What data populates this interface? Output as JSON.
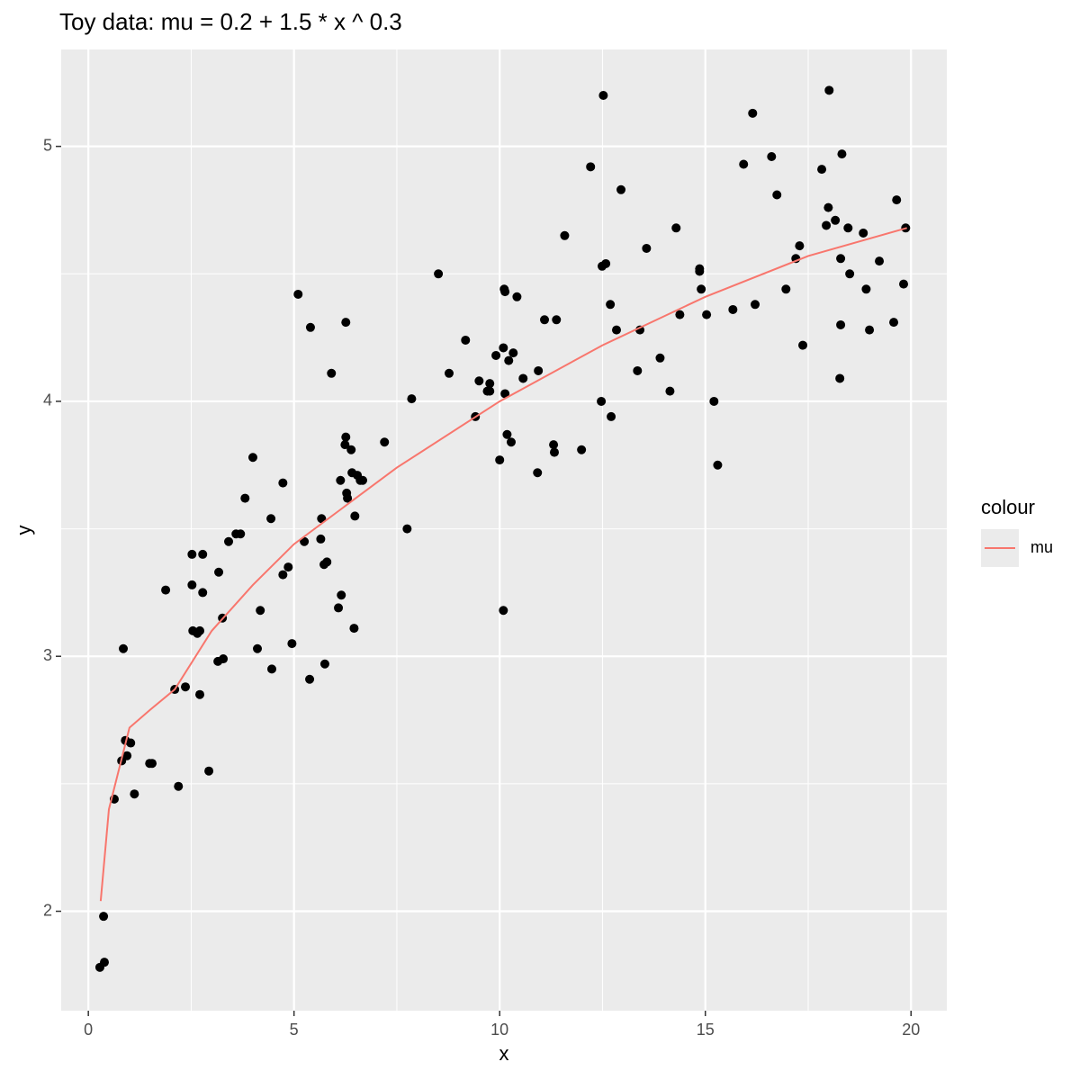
{
  "chart_data": {
    "type": "scatter",
    "title": "Toy data: mu = 0.2 + 1.5 * x ^ 0.3",
    "x_label": "x",
    "y_label": "y",
    "xlim": [
      -0.66,
      20.87
    ],
    "ylim": [
      1.61,
      5.38
    ],
    "xticks": [
      0,
      5,
      10,
      15,
      20
    ],
    "yticks": [
      2,
      3,
      4,
      5
    ],
    "grid": true,
    "legend_position": "right",
    "legend_title": "colour",
    "points": {
      "color": "#000000",
      "x": [
        0.28,
        0.39,
        0.37,
        0.85,
        0.63,
        0.81,
        0.9,
        0.94,
        1.03,
        1.12,
        1.49,
        1.55,
        1.88,
        2.1,
        2.19,
        2.36,
        2.52,
        2.52,
        2.54,
        2.65,
        2.71,
        2.78,
        2.78,
        2.71,
        2.93,
        3.15,
        3.17,
        3.26,
        3.28,
        3.41,
        3.59,
        3.7,
        3.81,
        4.0,
        4.11,
        4.18,
        4.44,
        4.46,
        4.73,
        4.73,
        4.86,
        4.95,
        5.1,
        5.25,
        5.4,
        5.38,
        5.65,
        5.67,
        5.73,
        5.8,
        5.75,
        5.91,
        6.08,
        6.13,
        6.15,
        6.24,
        6.26,
        6.26,
        6.28,
        6.3,
        6.39,
        6.41,
        6.46,
        6.48,
        6.54,
        6.61,
        6.67,
        7.2,
        7.75,
        7.86,
        8.51,
        8.77,
        9.17,
        9.41,
        9.5,
        9.7,
        9.76,
        9.76,
        9.91,
        10.0,
        10.09,
        10.11,
        10.13,
        10.13,
        10.18,
        10.22,
        10.28,
        10.33,
        10.09,
        10.42,
        10.57,
        10.92,
        10.94,
        11.09,
        11.31,
        11.33,
        11.38,
        11.58,
        11.99,
        12.21,
        12.47,
        12.49,
        12.52,
        12.58,
        12.69,
        12.71,
        12.84,
        12.95,
        13.35,
        13.41,
        13.57,
        13.9,
        14.14,
        14.29,
        14.38,
        14.86,
        14.86,
        14.9,
        15.03,
        15.21,
        15.3,
        15.67,
        15.93,
        16.15,
        16.21,
        16.61,
        16.74,
        16.96,
        17.2,
        17.29,
        17.37,
        17.83,
        17.94,
        17.99,
        18.01,
        18.16,
        18.27,
        18.29,
        18.29,
        18.32,
        18.47,
        18.51,
        18.84,
        18.91,
        18.99,
        19.23,
        19.58,
        19.65,
        19.82,
        19.87
      ],
      "values": [
        1.78,
        1.8,
        1.98,
        3.03,
        2.44,
        2.59,
        2.67,
        2.61,
        2.66,
        2.46,
        2.58,
        2.58,
        3.26,
        2.87,
        2.49,
        2.88,
        3.4,
        3.28,
        3.1,
        3.09,
        3.1,
        3.4,
        3.25,
        2.85,
        2.55,
        2.98,
        3.33,
        3.15,
        2.99,
        3.45,
        3.48,
        3.48,
        3.62,
        3.78,
        3.03,
        3.18,
        3.54,
        2.95,
        3.68,
        3.32,
        3.35,
        3.05,
        4.42,
        3.45,
        4.29,
        2.91,
        3.46,
        3.54,
        3.36,
        3.37,
        2.97,
        4.11,
        3.19,
        3.69,
        3.24,
        3.83,
        3.86,
        4.31,
        3.64,
        3.62,
        3.81,
        3.72,
        3.11,
        3.55,
        3.71,
        3.69,
        3.69,
        3.84,
        3.5,
        4.01,
        4.5,
        4.11,
        4.24,
        3.94,
        4.08,
        4.04,
        4.07,
        4.04,
        4.18,
        3.77,
        4.21,
        4.44,
        4.43,
        4.03,
        3.87,
        4.16,
        3.84,
        4.19,
        3.18,
        4.41,
        4.09,
        3.72,
        4.12,
        4.32,
        3.83,
        3.8,
        4.32,
        4.65,
        3.81,
        4.92,
        4.0,
        4.53,
        5.2,
        4.54,
        4.38,
        3.94,
        4.28,
        4.83,
        4.12,
        4.28,
        4.6,
        4.17,
        4.04,
        4.68,
        4.34,
        4.52,
        4.51,
        4.44,
        4.34,
        4.0,
        3.75,
        4.36,
        4.93,
        5.13,
        4.38,
        4.96,
        4.81,
        4.44,
        4.56,
        4.61,
        4.22,
        4.91,
        4.69,
        4.76,
        5.22,
        4.71,
        4.09,
        4.3,
        4.56,
        4.97,
        4.68,
        4.5,
        4.66,
        4.44,
        4.28,
        4.55,
        4.31,
        4.79,
        4.46,
        4.68
      ]
    },
    "series": [
      {
        "name": "mu",
        "color": "#f8766d",
        "x": [
          0.3,
          0.5,
          1,
          1.5,
          2.1,
          3,
          4,
          5,
          7.5,
          10,
          12.5,
          15,
          17.5,
          19.9
        ],
        "values": [
          2.04,
          2.4,
          2.72,
          2.79,
          2.87,
          3.1,
          3.28,
          3.44,
          3.74,
          4.0,
          4.22,
          4.41,
          4.57,
          4.68
        ]
      }
    ]
  }
}
